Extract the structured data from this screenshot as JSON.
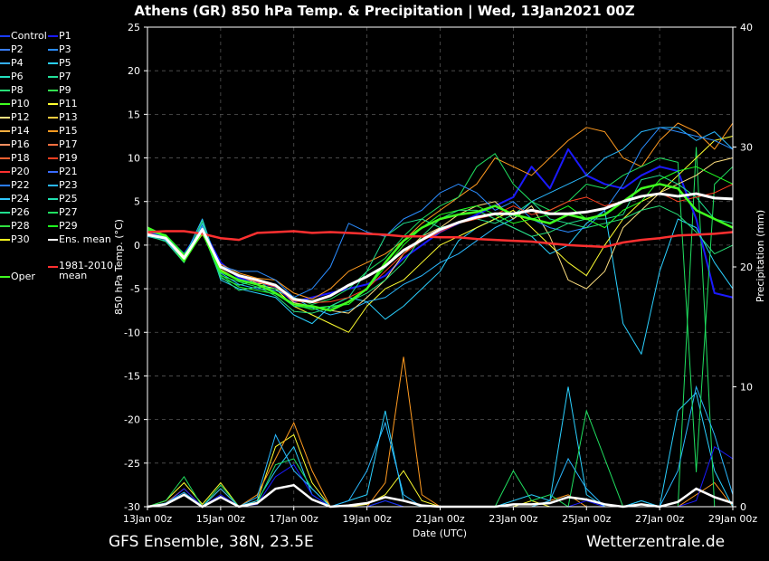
{
  "title": "Athens  (GR)  850 hPa Temp. & Precipitation | Wed, 13Jan2021 00Z",
  "footer": {
    "left": "GFS Ensemble, 38N, 23.5E",
    "right": "Wetterzentrale.de"
  },
  "legend": [
    {
      "label": "Control",
      "color": "#1a3cff"
    },
    {
      "label": "P1",
      "color": "#1a1aff"
    },
    {
      "label": "P2",
      "color": "#3a7fff"
    },
    {
      "label": "P3",
      "color": "#2a8cff"
    },
    {
      "label": "P4",
      "color": "#35b0ff"
    },
    {
      "label": "P5",
      "color": "#2ad0ff"
    },
    {
      "label": "P6",
      "color": "#23e0c0"
    },
    {
      "label": "P7",
      "color": "#23e09a"
    },
    {
      "label": "P8",
      "color": "#28e078"
    },
    {
      "label": "P9",
      "color": "#33e050"
    },
    {
      "label": "P10",
      "color": "#40ff20"
    },
    {
      "label": "P11",
      "color": "#ffff30"
    },
    {
      "label": "P12",
      "color": "#ffe080"
    },
    {
      "label": "P13",
      "color": "#ffcc40"
    },
    {
      "label": "P14",
      "color": "#ffb040"
    },
    {
      "label": "P15",
      "color": "#ff9a20"
    },
    {
      "label": "P16",
      "color": "#ff9060"
    },
    {
      "label": "P17",
      "color": "#ff7040"
    },
    {
      "label": "P18",
      "color": "#ff6030"
    },
    {
      "label": "P19",
      "color": "#ff4020"
    },
    {
      "label": "P20",
      "color": "#ff3030"
    },
    {
      "label": "P21",
      "color": "#3a6cff"
    },
    {
      "label": "P22",
      "color": "#2a7cff"
    },
    {
      "label": "P23",
      "color": "#2ab8ff"
    },
    {
      "label": "P24",
      "color": "#30c8ff"
    },
    {
      "label": "P25",
      "color": "#20e0b0"
    },
    {
      "label": "P26",
      "color": "#20e090"
    },
    {
      "label": "P27",
      "color": "#20e060"
    },
    {
      "label": "P28",
      "color": "#30e040"
    },
    {
      "label": "P29",
      "color": "#20ff20"
    },
    {
      "label": "P30",
      "color": "#ffff20"
    },
    {
      "label": "Ens. mean",
      "color": "#ffffff"
    },
    {
      "label": "1981-2010 mean",
      "color": "#ff3030"
    },
    {
      "label": "Oper",
      "color": "#40ff20"
    }
  ],
  "chart_data": {
    "type": "line",
    "title": "Athens  (GR)  850 hPa Temp. & Precipitation | Wed, 13Jan2021 00Z",
    "xlabel": "Date (UTC)",
    "ylabel": "850 hPa Temp. (°C)",
    "ylabel_right": "Precipitation (mm)",
    "ylim": [
      -30,
      25
    ],
    "ylim_right": [
      0,
      40
    ],
    "yticks": [
      25,
      20,
      15,
      10,
      5,
      0,
      -5,
      -10,
      -15,
      -20,
      -25,
      -30
    ],
    "yticks_right": [
      40,
      30,
      20,
      10,
      0
    ],
    "xticks": [
      "13Jan 00z",
      "15Jan 00z",
      "17Jan 00z",
      "19Jan 00z",
      "21Jan 00z",
      "23Jan 00z",
      "25Jan 00z",
      "27Jan 00z",
      "29Jan 00z"
    ],
    "x_days": [
      0,
      0.5,
      1,
      1.5,
      2,
      2.5,
      3,
      3.5,
      4,
      4.5,
      5,
      5.5,
      6,
      6.5,
      7,
      7.5,
      8,
      8.5,
      9,
      9.5,
      10,
      10.5,
      11,
      11.5,
      12,
      12.5,
      13,
      13.5,
      14,
      14.5,
      15,
      15.5,
      16
    ],
    "grid": true,
    "temperature_series": [
      {
        "name": "Ens. mean",
        "color": "#ffffff",
        "values": [
          1.2,
          0.8,
          -1.5,
          1.8,
          -2.5,
          -3.5,
          -4.0,
          -4.6,
          -6.2,
          -6.5,
          -5.8,
          -4.6,
          -3.6,
          -2.4,
          -0.6,
          0.6,
          1.8,
          2.6,
          3.2,
          3.6,
          3.6,
          4.0,
          3.6,
          3.6,
          3.8,
          4.2,
          5.0,
          5.6,
          5.9,
          5.6,
          5.9,
          5.4,
          5.3
        ]
      },
      {
        "name": "1981-2010 mean",
        "color": "#ff3030",
        "values": [
          1.5,
          1.6,
          1.6,
          1.3,
          0.8,
          0.6,
          1.4,
          1.5,
          1.6,
          1.4,
          1.5,
          1.4,
          1.3,
          1.2,
          1.0,
          1.0,
          0.9,
          0.9,
          0.7,
          0.6,
          0.5,
          0.4,
          0.2,
          0.0,
          -0.1,
          -0.2,
          0.3,
          0.6,
          0.8,
          1.1,
          1.2,
          1.3,
          1.5
        ]
      },
      {
        "name": "Oper",
        "color": "#40ff20",
        "values": [
          2.0,
          1.0,
          -1.8,
          1.5,
          -3.0,
          -4.0,
          -4.5,
          -5.5,
          -6.8,
          -7.0,
          -7.5,
          -6.5,
          -5.0,
          -2.0,
          0.5,
          2.0,
          3.0,
          3.5,
          3.8,
          4.5,
          3.5,
          3.0,
          2.5,
          3.5,
          3.0,
          3.5,
          5.0,
          6.5,
          7.0,
          6.5,
          4.0,
          3.0,
          2.0
        ]
      },
      {
        "name": "Control",
        "color": "#1a1aff",
        "values": [
          1.5,
          1.0,
          -1.0,
          2.0,
          -2.0,
          -3.8,
          -4.2,
          -4.8,
          -6.5,
          -6.0,
          -5.5,
          -5.0,
          -4.5,
          -3.5,
          -1.5,
          0.0,
          1.5,
          2.5,
          3.5,
          4.5,
          5.5,
          9.0,
          6.5,
          11.0,
          8.0,
          7.0,
          6.5,
          8.0,
          9.0,
          8.5,
          3.0,
          -5.5,
          -6.0
        ]
      },
      {
        "name": "P5",
        "color": "#2ad0ff",
        "values": [
          1.0,
          0.5,
          -2.0,
          2.5,
          -4.0,
          -5.0,
          -5.5,
          -6.0,
          -8.0,
          -9.0,
          -7.0,
          -6.0,
          -6.5,
          -8.5,
          -7.0,
          -5.0,
          -3.0,
          0.5,
          2.0,
          3.0,
          2.0,
          1.0,
          -1.0,
          0.0,
          2.5,
          4.0,
          -9.0,
          -12.5,
          -3.0,
          3.0,
          2.0,
          -2.0,
          -5.0
        ]
      },
      {
        "name": "P11",
        "color": "#ffff30",
        "values": [
          1.2,
          0.9,
          -1.2,
          2.0,
          -2.8,
          -4.0,
          -4.5,
          -5.0,
          -7.0,
          -8.0,
          -9.0,
          -10.0,
          -7.0,
          -5.0,
          -4.0,
          -2.0,
          0.0,
          1.0,
          2.0,
          3.0,
          4.0,
          2.0,
          0.0,
          -2.0,
          -3.5,
          0.0,
          3.0,
          5.0,
          6.0,
          8.0,
          10.0,
          12.0,
          12.5
        ]
      },
      {
        "name": "P15",
        "color": "#ff9a20",
        "values": [
          1.4,
          0.6,
          -1.6,
          1.2,
          -2.2,
          -3.2,
          -3.8,
          -4.0,
          -5.5,
          -6.2,
          -5.0,
          -3.0,
          -2.0,
          -1.0,
          0.5,
          2.5,
          4.0,
          5.5,
          7.0,
          10.0,
          9.0,
          8.0,
          10.0,
          12.0,
          13.5,
          13.0,
          10.0,
          9.0,
          12.0,
          14.0,
          13.0,
          11.0,
          14.0
        ]
      },
      {
        "name": "P23",
        "color": "#2ab8ff",
        "values": [
          1.0,
          0.7,
          -1.4,
          3.0,
          -3.2,
          -4.5,
          -5.0,
          -5.2,
          -6.0,
          -7.2,
          -8.0,
          -7.5,
          -6.5,
          -6.0,
          -4.5,
          -3.5,
          -2.0,
          -1.0,
          0.5,
          2.0,
          3.0,
          5.0,
          6.0,
          7.0,
          8.0,
          10.0,
          11.0,
          13.0,
          13.5,
          13.5,
          12.0,
          13.0,
          11.0
        ]
      },
      {
        "name": "P27",
        "color": "#20e060",
        "values": [
          1.8,
          1.1,
          -1.1,
          1.9,
          -3.5,
          -4.2,
          -4.8,
          -5.0,
          -6.0,
          -6.8,
          -6.2,
          -5.0,
          -3.0,
          -1.5,
          1.0,
          3.0,
          4.5,
          5.5,
          9.0,
          10.5,
          7.0,
          5.0,
          4.0,
          5.0,
          7.0,
          6.5,
          8.0,
          9.0,
          10.0,
          9.5,
          -26.0,
          7.0,
          9.0
        ]
      },
      {
        "name": "P12",
        "color": "#ffe080",
        "values": [
          1.3,
          0.9,
          -1.3,
          1.7,
          -2.6,
          -3.5,
          -4.4,
          -4.5,
          -6.6,
          -7.0,
          -7.5,
          -7.8,
          -6.0,
          -4.0,
          -1.0,
          1.0,
          2.0,
          3.5,
          4.5,
          5.0,
          3.0,
          4.5,
          1.0,
          -4.0,
          -5.0,
          -3.0,
          2.0,
          4.0,
          6.0,
          7.0,
          8.0,
          9.5,
          10.0
        ]
      },
      {
        "name": "P3",
        "color": "#2a8cff",
        "values": [
          1.5,
          0.6,
          -1.8,
          2.2,
          -2.4,
          -3.0,
          -3.0,
          -4.0,
          -6.0,
          -5.0,
          -2.5,
          2.5,
          1.5,
          1.0,
          3.0,
          4.0,
          6.0,
          7.0,
          6.0,
          4.0,
          5.0,
          3.0,
          2.0,
          1.5,
          2.0,
          4.0,
          7.0,
          11.0,
          13.5,
          13.0,
          12.5,
          12.0,
          11.0
        ]
      },
      {
        "name": "P26",
        "color": "#20e090",
        "values": [
          1.6,
          1.0,
          -1.7,
          1.6,
          -3.8,
          -4.6,
          -4.0,
          -5.5,
          -7.0,
          -7.2,
          -7.0,
          -6.0,
          -3.0,
          1.0,
          2.5,
          3.0,
          2.0,
          2.5,
          3.0,
          2.5,
          3.5,
          5.0,
          3.0,
          2.5,
          3.0,
          3.0,
          3.5,
          7.5,
          8.0,
          7.0,
          5.5,
          3.0,
          2.5
        ]
      },
      {
        "name": "P19",
        "color": "#ff4020",
        "values": [
          1.4,
          0.8,
          -1.5,
          1.8,
          -2.6,
          -3.6,
          -4.2,
          -4.8,
          -6.4,
          -6.6,
          -6.5,
          -6.0,
          -5.0,
          -3.0,
          -1.0,
          0.5,
          1.5,
          2.5,
          3.0,
          3.5,
          4.5,
          3.5,
          4.0,
          5.0,
          5.5,
          4.5,
          5.0,
          5.5,
          6.0,
          5.0,
          5.5,
          6.0,
          7.0
        ]
      },
      {
        "name": "P29",
        "color": "#20ff20",
        "values": [
          1.7,
          1.2,
          -1.0,
          1.4,
          -3.4,
          -4.8,
          -5.2,
          -5.6,
          -6.8,
          -7.4,
          -7.0,
          -6.8,
          -5.0,
          -2.5,
          0.0,
          2.0,
          3.5,
          4.0,
          4.5,
          3.5,
          2.5,
          3.0,
          3.5,
          4.5,
          3.0,
          2.0,
          4.0,
          5.0,
          7.5,
          8.5,
          9.0,
          8.0,
          7.0
        ]
      },
      {
        "name": "P8",
        "color": "#28e078",
        "values": [
          1.1,
          0.4,
          -2.0,
          2.8,
          -3.6,
          -5.2,
          -4.8,
          -5.8,
          -7.6,
          -7.8,
          -7.2,
          -6.5,
          -5.5,
          -4.0,
          -2.0,
          1.0,
          3.0,
          4.0,
          4.0,
          3.0,
          2.0,
          1.0,
          1.5,
          2.5,
          2.0,
          2.5,
          3.0,
          4.0,
          4.5,
          3.5,
          1.5,
          -1.0,
          0.0
        ]
      }
    ],
    "precipitation_series": [
      {
        "name": "P11",
        "color": "#ffff30",
        "values": [
          0,
          0.5,
          2.0,
          0.2,
          2.0,
          0,
          0.5,
          5.0,
          6.0,
          2.0,
          0,
          0,
          0.2,
          1.0,
          3.0,
          0.5,
          0,
          0,
          0,
          0,
          0,
          0.5,
          0,
          0,
          0,
          0,
          0,
          0,
          0,
          0,
          0,
          0,
          0
        ]
      },
      {
        "name": "P15",
        "color": "#ff9a20",
        "values": [
          0,
          0.3,
          1.5,
          0,
          1.5,
          0,
          1.0,
          4.0,
          7.0,
          3.0,
          0,
          0,
          0,
          2.0,
          12.5,
          1.0,
          0,
          0,
          0,
          0,
          0,
          0,
          0.5,
          1.0,
          0,
          0,
          0,
          0,
          0,
          0,
          1.0,
          2.0,
          0
        ]
      },
      {
        "name": "P5",
        "color": "#2ad0ff",
        "values": [
          0,
          0.2,
          1.0,
          0,
          0.8,
          0,
          0.5,
          3.0,
          5.0,
          1.0,
          0,
          0.5,
          1.0,
          8.0,
          0.5,
          0,
          0,
          0,
          0,
          0,
          0.5,
          1.0,
          0.5,
          10.0,
          1.0,
          0,
          0,
          0.5,
          0,
          8.0,
          9.5,
          3.0,
          0
        ]
      },
      {
        "name": "P27",
        "color": "#20e060",
        "values": [
          0,
          0.5,
          2.5,
          0,
          1.8,
          0,
          0.3,
          3.5,
          4.0,
          1.5,
          0,
          0,
          0,
          0.5,
          0,
          0,
          0,
          0,
          0,
          0,
          3.0,
          0.5,
          1.0,
          0,
          8.0,
          4.0,
          0,
          0.5,
          0,
          0,
          30.0,
          0,
          0
        ]
      },
      {
        "name": "Control",
        "color": "#1a1aff",
        "values": [
          0,
          0.2,
          1.5,
          0,
          1.0,
          0,
          0.2,
          2.5,
          3.5,
          1.0,
          0,
          0,
          0,
          0.5,
          0,
          0,
          0,
          0,
          0,
          0,
          0,
          0,
          0,
          0,
          0.5,
          0,
          0,
          0,
          0,
          0,
          0.5,
          5.0,
          4.0
        ]
      },
      {
        "name": "P23",
        "color": "#2ab8ff",
        "values": [
          0,
          0.3,
          1.2,
          0,
          1.5,
          0,
          0.8,
          6.0,
          3.0,
          1.5,
          0,
          0.5,
          3.0,
          7.0,
          1.0,
          0,
          0,
          0,
          0,
          0,
          0,
          0,
          0.5,
          4.0,
          1.5,
          0,
          0,
          0.5,
          0,
          3.0,
          10.0,
          6.0,
          1.0
        ]
      }
    ],
    "precipitation_mean": {
      "name": "Ens. mean",
      "color": "#ffffff",
      "values": [
        0,
        0.2,
        1.0,
        0,
        0.8,
        0,
        0.3,
        1.5,
        1.8,
        0.6,
        0,
        0.1,
        0.3,
        0.8,
        0.5,
        0.1,
        0,
        0,
        0,
        0,
        0.2,
        0.2,
        0.3,
        0.8,
        0.6,
        0.2,
        0,
        0.2,
        0,
        0.4,
        1.5,
        0.8,
        0.3
      ]
    }
  }
}
